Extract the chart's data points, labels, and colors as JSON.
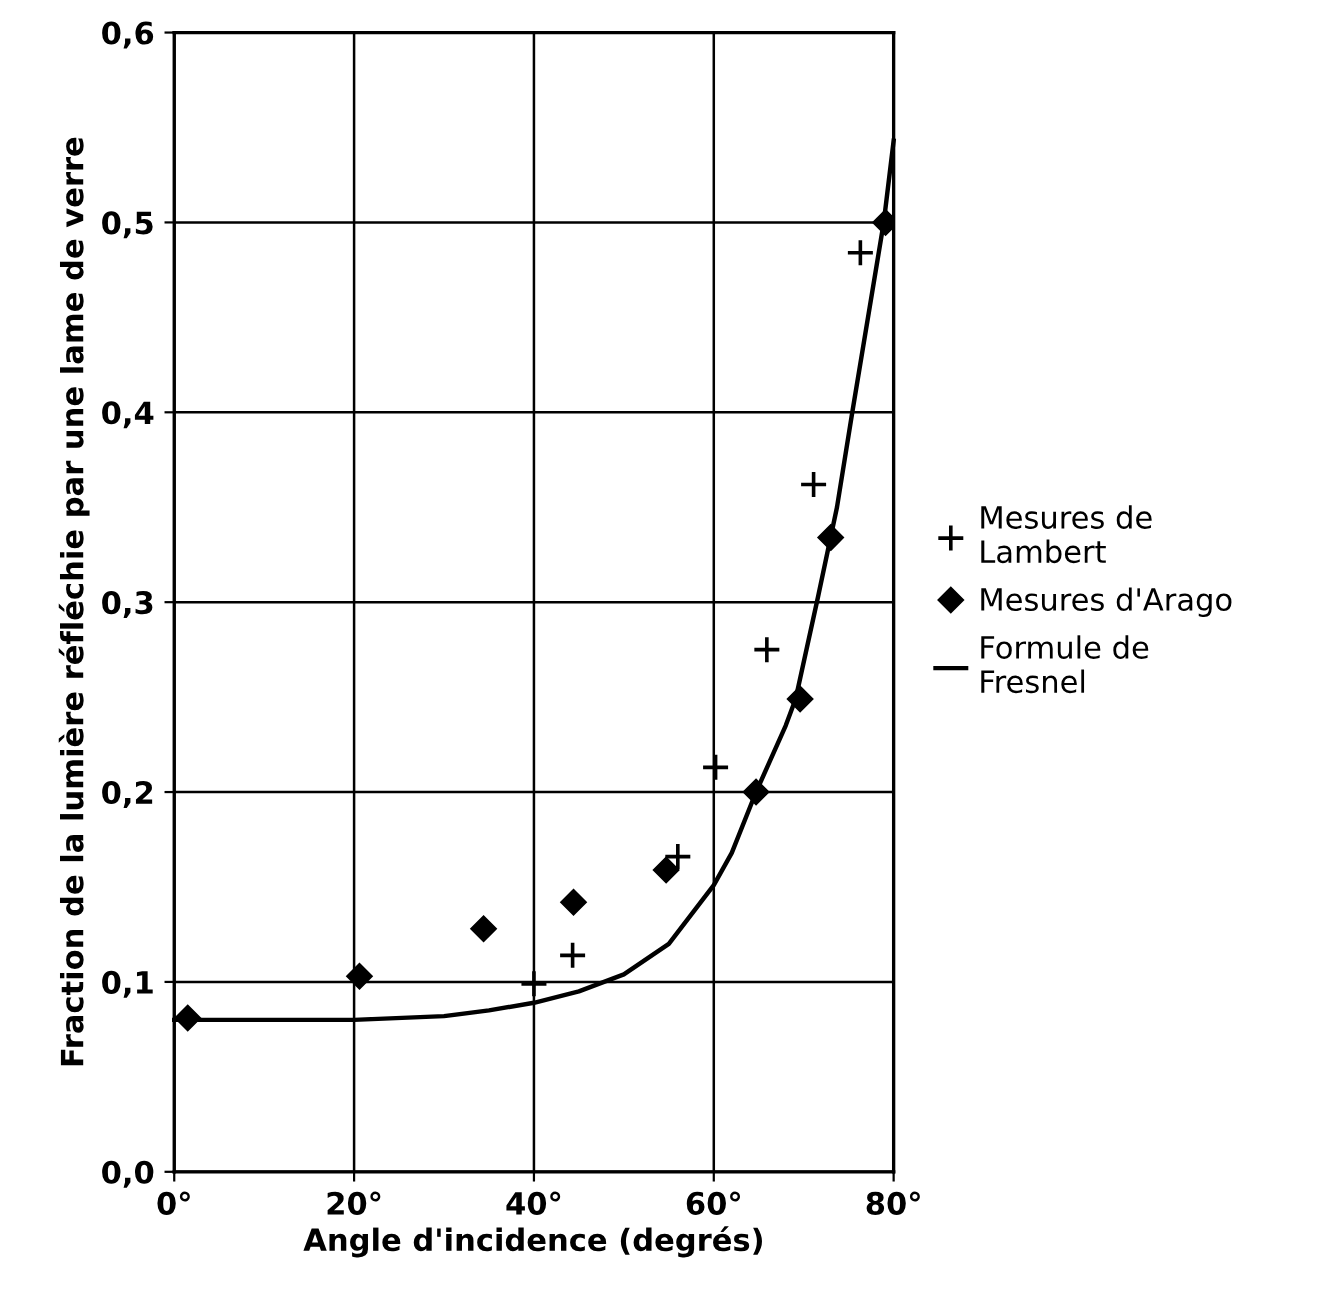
{
  "chart_data": {
    "type": "scatter",
    "xlabel": "Angle d'incidence (degrés)",
    "ylabel": "Fraction de la lumière réfléchie par une lame de verre",
    "xlim": [
      0,
      80
    ],
    "xticks": [
      {
        "value": 0,
        "label": "0°"
      },
      {
        "value": 20,
        "label": "20°"
      },
      {
        "value": 40,
        "label": "40°"
      },
      {
        "value": 60,
        "label": "60°"
      },
      {
        "value": 80,
        "label": "80°"
      }
    ],
    "ylim": [
      0,
      0.6
    ],
    "yticks": [
      {
        "value": 0,
        "label": "0,0"
      },
      {
        "value": 0.1,
        "label": "0,1"
      },
      {
        "value": 0.2,
        "label": "0,2"
      },
      {
        "value": 0.3,
        "label": "0,3"
      },
      {
        "value": 0.4,
        "label": "0,4"
      },
      {
        "value": 0.5,
        "label": "0,5"
      },
      {
        "value": 0.6,
        "label": "0,6"
      }
    ],
    "grid": true,
    "legend": "right",
    "series": [
      {
        "name": "Mesures de\nLambert",
        "marker": "cross",
        "color": "#000000",
        "x": [
          40,
          44.3,
          56,
          60.2,
          65.9,
          71.1,
          76.3
        ],
        "values": [
          0.099,
          0.114,
          0.166,
          0.213,
          0.275,
          0.362,
          0.484
        ]
      },
      {
        "name": "Mesures d'Arago",
        "marker": "diamond",
        "color": "#000000",
        "x": [
          1.5,
          20.6,
          34.4,
          44.4,
          54.7,
          64.7,
          69.6,
          73,
          79.1
        ],
        "values": [
          0.081,
          0.103,
          0.128,
          0.142,
          0.159,
          0.2,
          0.249,
          0.334,
          0.5
        ]
      },
      {
        "name": "Formule de\nFresnel",
        "type": "line",
        "marker": "none",
        "color": "#000000",
        "x": [
          0,
          20,
          30,
          35,
          40,
          45,
          50,
          55,
          60,
          62,
          64.7,
          68,
          69.1,
          71.6,
          73.7,
          75.4,
          78.9,
          80
        ],
        "values": [
          0.08,
          0.08,
          0.082,
          0.085,
          0.089,
          0.095,
          0.104,
          0.12,
          0.151,
          0.168,
          0.2,
          0.235,
          0.249,
          0.303,
          0.35,
          0.4,
          0.5,
          0.543
        ]
      }
    ]
  }
}
